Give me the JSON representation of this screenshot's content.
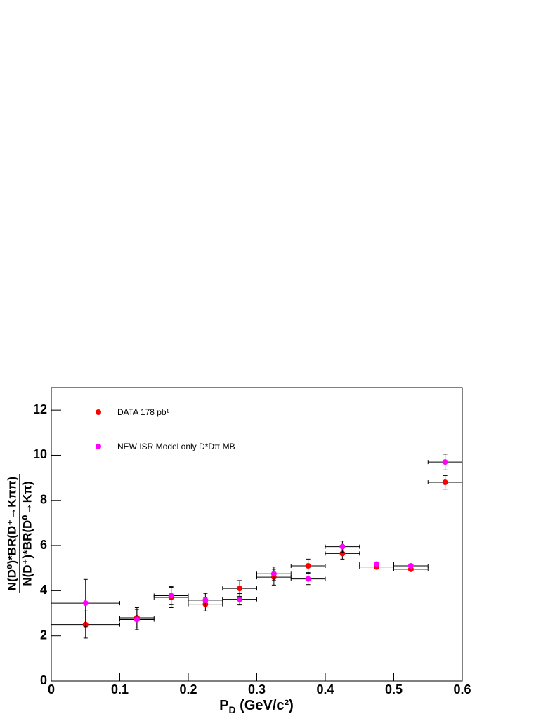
{
  "chart_data": {
    "type": "errorbar",
    "x": [
      0.05,
      0.125,
      0.175,
      0.225,
      0.275,
      0.325,
      0.375,
      0.425,
      0.475,
      0.525,
      0.575
    ],
    "xerr": [
      0.05,
      0.025,
      0.025,
      0.025,
      0.025,
      0.025,
      0.025,
      0.025,
      0.025,
      0.025,
      0.025
    ],
    "series": [
      {
        "name": "DATA 178 pb¹",
        "color": "#ff0000",
        "values": [
          2.5,
          2.8,
          3.7,
          3.4,
          4.1,
          4.6,
          5.1,
          5.65,
          5.05,
          4.95,
          8.8
        ],
        "errors": [
          0.6,
          0.45,
          0.45,
          0.3,
          0.35,
          0.35,
          0.3,
          0.25,
          0.08,
          0.08,
          0.3
        ]
      },
      {
        "name": "NEW ISR Model only D*Dπ MB",
        "color": "#ff00ff",
        "values": [
          3.45,
          2.72,
          3.78,
          3.58,
          3.62,
          4.75,
          4.52,
          5.95,
          5.18,
          5.1,
          9.7
        ],
        "errors": [
          1.05,
          0.45,
          0.4,
          0.3,
          0.25,
          0.3,
          0.25,
          0.25,
          0.07,
          0.07,
          0.35
        ]
      }
    ],
    "x_label": [
      "P",
      "D",
      " (GeV/c²)"
    ],
    "y_label": [
      "N(D⁰)*BR(D⁺→Kππ)",
      "N(D⁺)*BR(D⁰→Kπ)"
    ],
    "xlim": [
      0,
      0.6
    ],
    "xticks": [
      0,
      0.1,
      0.2,
      0.3,
      0.4,
      0.5,
      0.6
    ],
    "ylim": [
      0,
      13
    ],
    "yticks": [
      0,
      2,
      4,
      6,
      8,
      10,
      12
    ],
    "legend": "top-left"
  }
}
